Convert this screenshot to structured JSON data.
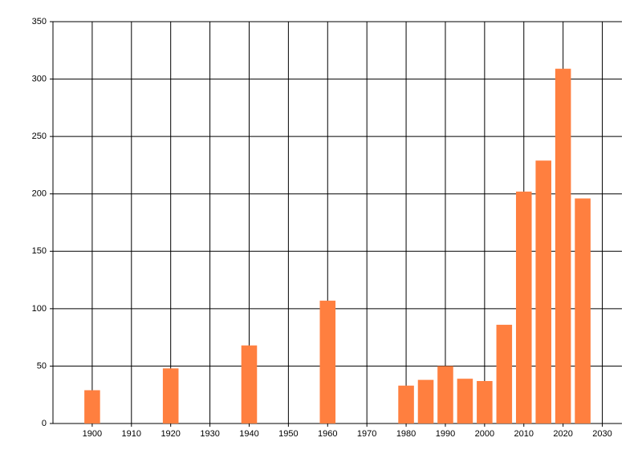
{
  "chart_data": {
    "type": "bar",
    "x": [
      1900,
      1920,
      1940,
      1960,
      1980,
      1985,
      1990,
      1995,
      2000,
      2005,
      2010,
      2015,
      2020,
      2025
    ],
    "values": [
      29,
      48,
      68,
      107,
      33,
      38,
      50,
      39,
      37,
      86,
      202,
      229,
      309,
      196
    ],
    "color": "#ff7f3f",
    "xlim": [
      1890,
      2035
    ],
    "xticks": [
      1900,
      1910,
      1920,
      1930,
      1940,
      1950,
      1960,
      1970,
      1980,
      1990,
      2000,
      2010,
      2020,
      2030
    ],
    "ylim": [
      0,
      350
    ],
    "yticks": [
      0,
      50,
      100,
      150,
      200,
      250,
      300,
      350
    ],
    "grid": true
  }
}
